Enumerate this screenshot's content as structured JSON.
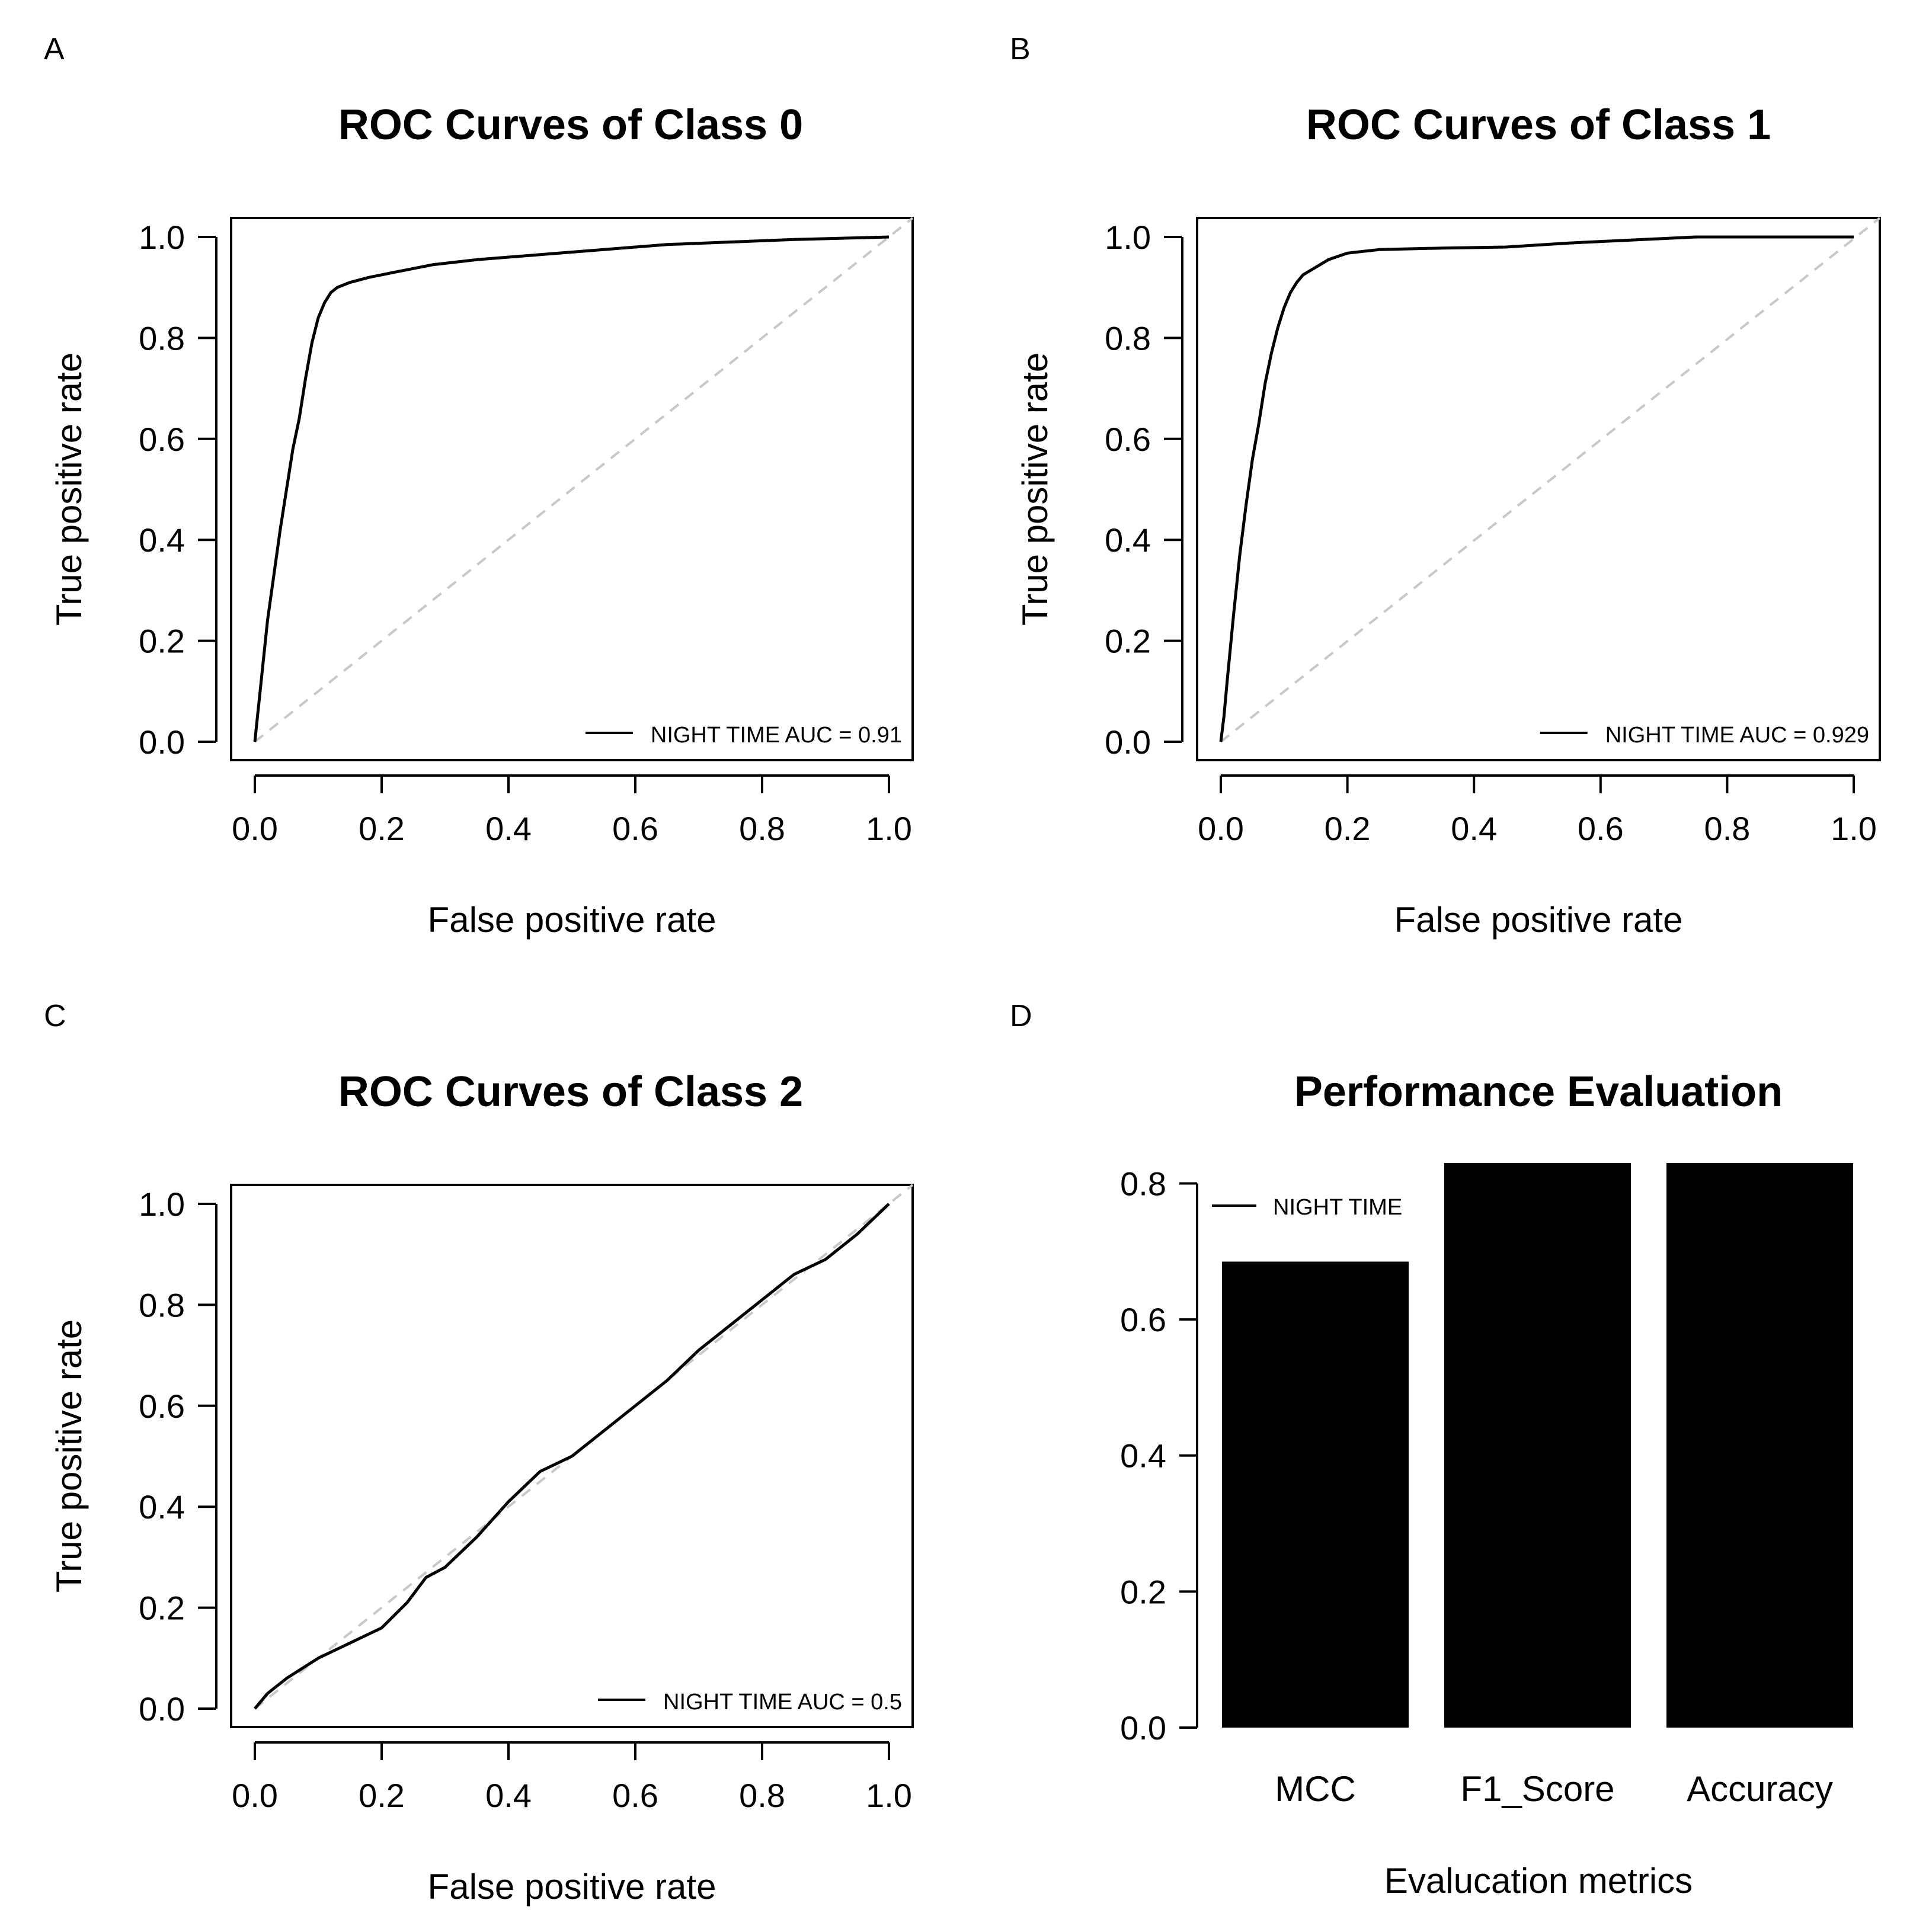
{
  "colors": {
    "line": "#000000",
    "diagonal": "#c8c8c8",
    "bar": "#000000",
    "background": "#ffffff"
  },
  "chart_data": [
    {
      "panel_label": "A",
      "type": "line",
      "title": "ROC Curves of Class 0",
      "xlabel": "False positive rate",
      "ylabel": "True positive rate",
      "xlim": [
        0,
        1
      ],
      "ylim": [
        0,
        1
      ],
      "xticks": [
        "0.0",
        "0.2",
        "0.4",
        "0.6",
        "0.8",
        "1.0"
      ],
      "yticks": [
        "0.0",
        "0.2",
        "0.4",
        "0.6",
        "0.8",
        "1.0"
      ],
      "legend": "NIGHT TIME AUC = 0.91",
      "legend_position": "bottom-right",
      "reference_line": "diagonal dashed",
      "series": [
        {
          "name": "NIGHT TIME",
          "x": [
            0,
            0.01,
            0.02,
            0.03,
            0.04,
            0.05,
            0.06,
            0.07,
            0.08,
            0.09,
            0.1,
            0.11,
            0.12,
            0.13,
            0.15,
            0.18,
            0.22,
            0.28,
            0.35,
            0.45,
            0.55,
            0.65,
            0.75,
            0.85,
            1.0
          ],
          "y": [
            0,
            0.12,
            0.24,
            0.33,
            0.42,
            0.5,
            0.58,
            0.64,
            0.72,
            0.79,
            0.84,
            0.87,
            0.89,
            0.9,
            0.91,
            0.92,
            0.93,
            0.945,
            0.955,
            0.965,
            0.975,
            0.985,
            0.99,
            0.995,
            1.0
          ]
        }
      ]
    },
    {
      "panel_label": "B",
      "type": "line",
      "title": "ROC Curves of Class 1",
      "xlabel": "False positive rate",
      "ylabel": "True positive rate",
      "xlim": [
        0,
        1
      ],
      "ylim": [
        0,
        1
      ],
      "xticks": [
        "0.0",
        "0.2",
        "0.4",
        "0.6",
        "0.8",
        "1.0"
      ],
      "yticks": [
        "0.0",
        "0.2",
        "0.4",
        "0.6",
        "0.8",
        "1.0"
      ],
      "legend": "NIGHT TIME AUC = 0.929",
      "legend_position": "bottom-right",
      "reference_line": "diagonal dashed",
      "series": [
        {
          "name": "NIGHT TIME",
          "x": [
            0,
            0.005,
            0.01,
            0.02,
            0.03,
            0.04,
            0.05,
            0.06,
            0.07,
            0.08,
            0.09,
            0.1,
            0.11,
            0.12,
            0.13,
            0.15,
            0.17,
            0.2,
            0.25,
            0.35,
            0.45,
            0.55,
            0.65,
            0.75,
            1.0
          ],
          "y": [
            0,
            0.05,
            0.12,
            0.25,
            0.37,
            0.47,
            0.56,
            0.63,
            0.71,
            0.77,
            0.82,
            0.86,
            0.89,
            0.91,
            0.925,
            0.94,
            0.955,
            0.968,
            0.975,
            0.978,
            0.98,
            0.988,
            0.994,
            1.0,
            1.0
          ]
        }
      ]
    },
    {
      "panel_label": "C",
      "type": "line",
      "title": "ROC Curves of Class 2",
      "xlabel": "False positive rate",
      "ylabel": "True positive rate",
      "xlim": [
        0,
        1
      ],
      "ylim": [
        0,
        1
      ],
      "xticks": [
        "0.0",
        "0.2",
        "0.4",
        "0.6",
        "0.8",
        "1.0"
      ],
      "yticks": [
        "0.0",
        "0.2",
        "0.4",
        "0.6",
        "0.8",
        "1.0"
      ],
      "legend": "NIGHT TIME AUC = 0.5",
      "legend_position": "bottom-right",
      "reference_line": "diagonal dashed",
      "series": [
        {
          "name": "NIGHT TIME",
          "x": [
            0,
            0.02,
            0.05,
            0.1,
            0.15,
            0.2,
            0.24,
            0.27,
            0.3,
            0.35,
            0.4,
            0.45,
            0.5,
            0.55,
            0.6,
            0.65,
            0.7,
            0.75,
            0.8,
            0.85,
            0.9,
            0.95,
            1.0
          ],
          "y": [
            0,
            0.03,
            0.06,
            0.1,
            0.13,
            0.16,
            0.21,
            0.26,
            0.28,
            0.34,
            0.41,
            0.47,
            0.5,
            0.55,
            0.6,
            0.65,
            0.71,
            0.76,
            0.81,
            0.86,
            0.89,
            0.94,
            1.0
          ]
        }
      ]
    },
    {
      "panel_label": "D",
      "type": "bar",
      "title": "Performance Evaluation",
      "xlabel": "Evalucation metrics",
      "ylabel": "",
      "categories": [
        "MCC",
        "F1_Score",
        "Accuracy"
      ],
      "values": [
        0.685,
        0.83,
        0.83
      ],
      "ylim": [
        0,
        0.83
      ],
      "yticks": [
        "0.0",
        "0.2",
        "0.4",
        "0.6",
        "0.8"
      ],
      "legend": "NIGHT TIME",
      "legend_position": "top-left"
    }
  ]
}
